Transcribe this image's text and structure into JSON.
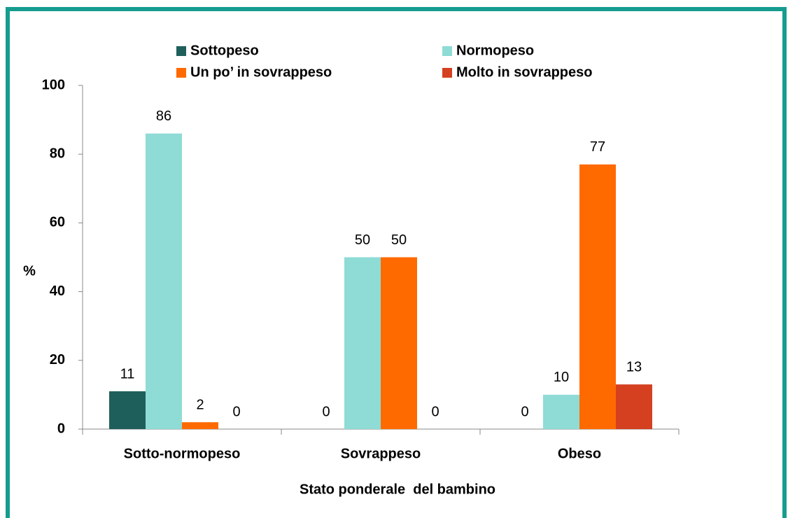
{
  "chart_data": {
    "type": "bar",
    "x_label": "Stato ponderale  del bambino",
    "y_label": "%",
    "categories": [
      "Sotto-normopeso",
      "Sovrappeso",
      "Obeso"
    ],
    "series": [
      {
        "name": "Sottopeso",
        "color": "#1f5f5b",
        "values": [
          11,
          0,
          0
        ]
      },
      {
        "name": "Normopeso",
        "color": "#8fdbd6",
        "values": [
          86,
          50,
          10
        ]
      },
      {
        "name": "Un po’ in sovrappeso",
        "color": "#ff6a00",
        "values": [
          2,
          50,
          77
        ]
      },
      {
        "name": "Molto in sovrappeso",
        "color": "#d44020",
        "values": [
          0,
          0,
          13
        ]
      }
    ],
    "ylim": [
      0,
      100
    ],
    "yticks": [
      0,
      20,
      40,
      60,
      80,
      100
    ],
    "grid": false,
    "legend": "top"
  }
}
